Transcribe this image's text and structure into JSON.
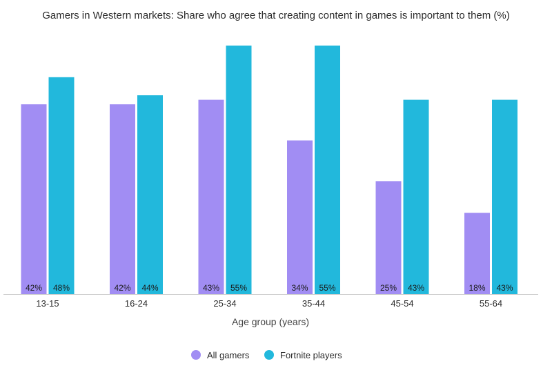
{
  "chart_data": {
    "type": "bar",
    "title": "Gamers in Western markets: Share who agree that creating content in games is important to them (%)",
    "xlabel": "Age group (years)",
    "ylabel": "",
    "categories": [
      "13-15",
      "16-24",
      "25-34",
      "35-44",
      "45-54",
      "55-64"
    ],
    "series": [
      {
        "name": "All gamers",
        "color": "#a18df3",
        "values": [
          42,
          42,
          43,
          34,
          25,
          18
        ],
        "labels": [
          "42%",
          "42%",
          "43%",
          "34%",
          "25%",
          "18%"
        ]
      },
      {
        "name": "Fortnite players",
        "color": "#22b8dc",
        "values": [
          48,
          44,
          55,
          55,
          43,
          43
        ],
        "labels": [
          "48%",
          "44%",
          "55%",
          "55%",
          "43%",
          "43%"
        ]
      }
    ],
    "ylim": [
      0,
      55
    ],
    "grid": false,
    "legend_position": "bottom-center"
  }
}
